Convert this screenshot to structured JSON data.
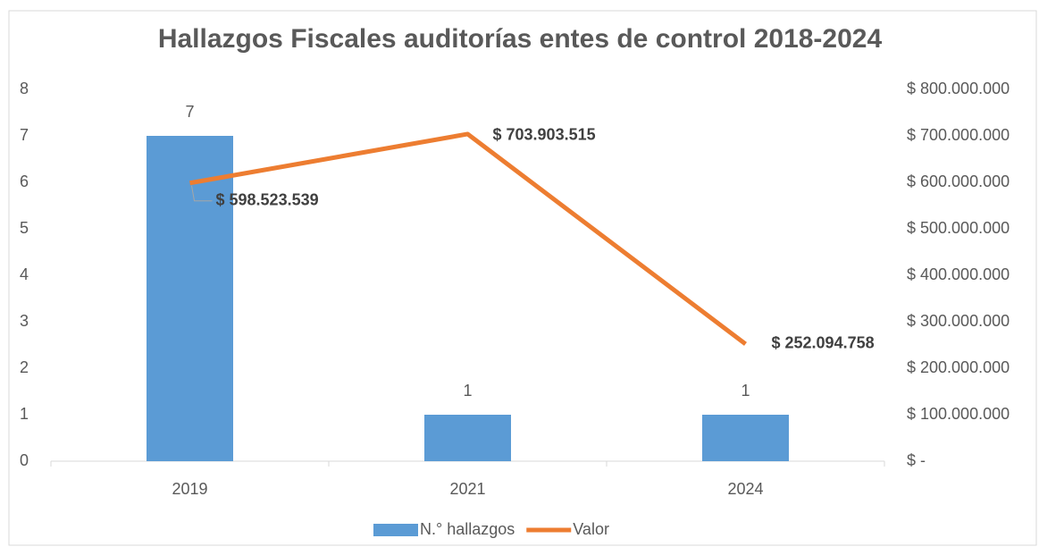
{
  "chart_data": {
    "type": "combo",
    "title": "Hallazgos Fiscales auditorías entes de control 2018-2024",
    "categories": [
      "2019",
      "2021",
      "2024"
    ],
    "series": [
      {
        "name": "N.° hallazgos",
        "type": "bar",
        "color": "#5b9bd5",
        "values": [
          7,
          1,
          1
        ]
      },
      {
        "name": "Valor",
        "type": "line",
        "axis": "y2",
        "color": "#ed7d31",
        "values": [
          598523539,
          703903515,
          252094758
        ],
        "value_labels": [
          "$ 598.523.539",
          "$ 703.903.515",
          "$ 252.094.758"
        ]
      }
    ],
    "ylim": [
      0,
      8
    ],
    "yticks": [
      0,
      1,
      2,
      3,
      4,
      5,
      6,
      7,
      8
    ],
    "y2lim": [
      0,
      800000000
    ],
    "y2ticks": [
      {
        "value": 0,
        "label": "$ -"
      },
      {
        "value": 100000000,
        "label": "$ 100.000.000"
      },
      {
        "value": 200000000,
        "label": "$ 200.000.000"
      },
      {
        "value": 300000000,
        "label": "$ 300.000.000"
      },
      {
        "value": 400000000,
        "label": "$ 400.000.000"
      },
      {
        "value": 500000000,
        "label": "$ 500.000.000"
      },
      {
        "value": 600000000,
        "label": "$ 600.000.000"
      },
      {
        "value": 700000000,
        "label": "$ 700.000.000"
      },
      {
        "value": 800000000,
        "label": "$ 800.000.000"
      }
    ],
    "legend": "bottom",
    "grid": false
  }
}
